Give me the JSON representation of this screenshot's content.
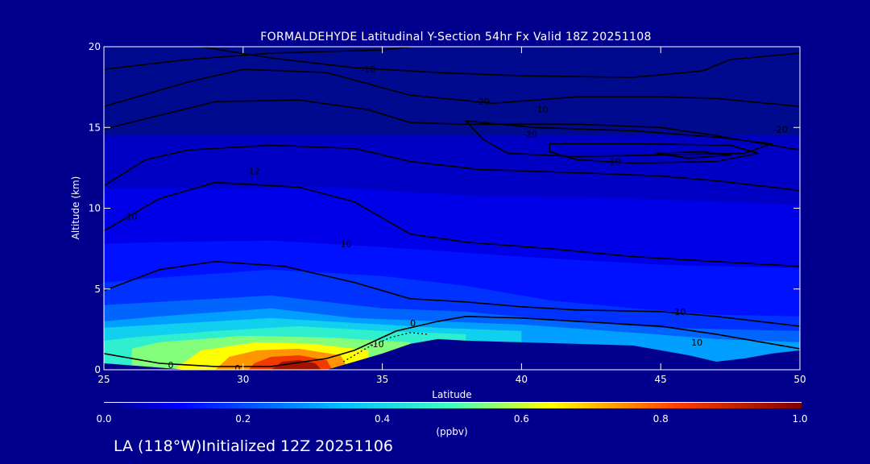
{
  "chart_data": {
    "type": "heatmap",
    "title": "FORMALDEHYDE Latitudinal Y-Section 54hr  Fx Valid 18Z 20251108",
    "xlabel": "Latitude",
    "ylabel": "Altitude (km)",
    "xlim": [
      25,
      50
    ],
    "ylim": [
      0,
      20
    ],
    "x_ticks": [
      25,
      30,
      35,
      40,
      45,
      50
    ],
    "y_ticks": [
      0,
      5,
      10,
      15,
      20
    ],
    "colorbar": {
      "label": "(ppbv)",
      "range": [
        0.0,
        1.0
      ],
      "ticks": [
        "0.0",
        "0.2",
        "0.4",
        "0.6",
        "0.8",
        "1.0"
      ]
    },
    "colors": {
      "background": "#00008c",
      "plot_background": "#000a8e",
      "terrain": "#00008c",
      "contour": "#000000"
    },
    "terrain_profile": [
      [
        25,
        0.4
      ],
      [
        28,
        0
      ],
      [
        30,
        0
      ],
      [
        31,
        0
      ],
      [
        33,
        0
      ],
      [
        34,
        0.5
      ],
      [
        35,
        1.0
      ],
      [
        36,
        1.6
      ],
      [
        37,
        1.9
      ],
      [
        38,
        1.8
      ],
      [
        40,
        1.7
      ],
      [
        42,
        1.6
      ],
      [
        44,
        1.5
      ],
      [
        45,
        1.2
      ],
      [
        46,
        0.9
      ],
      [
        47,
        0.5
      ],
      [
        48,
        0.7
      ],
      [
        49,
        1.0
      ],
      [
        50,
        1.2
      ]
    ],
    "concentration_fields": [
      {
        "value": 0.06,
        "polygon": [
          [
            25,
            0
          ],
          [
            50,
            0
          ],
          [
            50,
            14.5
          ],
          [
            25,
            14.5
          ]
        ]
      },
      {
        "value": 0.09,
        "polygon": [
          [
            25,
            0
          ],
          [
            50,
            0
          ],
          [
            50,
            10.2
          ],
          [
            44,
            10.6
          ],
          [
            38,
            10.8
          ],
          [
            33,
            11.3
          ],
          [
            25,
            11.2
          ]
        ]
      },
      {
        "value": 0.13,
        "polygon": [
          [
            25,
            0
          ],
          [
            50,
            0
          ],
          [
            50,
            6.3
          ],
          [
            45,
            6.5
          ],
          [
            40,
            7.0
          ],
          [
            35,
            7.6
          ],
          [
            31,
            8.0
          ],
          [
            27,
            7.9
          ],
          [
            25,
            7.8
          ]
        ]
      },
      {
        "value": 0.17,
        "polygon": [
          [
            25,
            0
          ],
          [
            50,
            0
          ],
          [
            50,
            3.3
          ],
          [
            47,
            3.4
          ],
          [
            44,
            3.8
          ],
          [
            41,
            4.3
          ],
          [
            38,
            5.2
          ],
          [
            35,
            5.8
          ],
          [
            31,
            6.2
          ],
          [
            27,
            5.7
          ],
          [
            25,
            5.4
          ]
        ]
      },
      {
        "value": 0.23,
        "polygon": [
          [
            25,
            0
          ],
          [
            50,
            0
          ],
          [
            50,
            2.4
          ],
          [
            45,
            2.6
          ],
          [
            41,
            3.1
          ],
          [
            38,
            3.6
          ],
          [
            35,
            3.8
          ],
          [
            31,
            4.6
          ],
          [
            27,
            4.2
          ],
          [
            25,
            4.0
          ]
        ]
      },
      {
        "value": 0.3,
        "polygon": [
          [
            25,
            0
          ],
          [
            50,
            0
          ],
          [
            50,
            1.7
          ],
          [
            47,
            1.9
          ],
          [
            44,
            2.3
          ],
          [
            40,
            2.8
          ],
          [
            37,
            3.0
          ],
          [
            34,
            3.2
          ],
          [
            31,
            3.8
          ],
          [
            27,
            3.3
          ],
          [
            25,
            3.0
          ]
        ]
      },
      {
        "value": 0.38,
        "polygon": [
          [
            25,
            0
          ],
          [
            40,
            0
          ],
          [
            40,
            2.4
          ],
          [
            37,
            2.6
          ],
          [
            34,
            2.9
          ],
          [
            31,
            3.2
          ],
          [
            28,
            2.9
          ],
          [
            25,
            2.6
          ]
        ]
      },
      {
        "value": 0.46,
        "polygon": [
          [
            25,
            0
          ],
          [
            38,
            0
          ],
          [
            38,
            2.2
          ],
          [
            35,
            2.4
          ],
          [
            32,
            2.7
          ],
          [
            29,
            2.4
          ],
          [
            26,
            2.0
          ],
          [
            25,
            1.8
          ]
        ]
      },
      {
        "value": 0.55,
        "polygon": [
          [
            26,
            0
          ],
          [
            36,
            0
          ],
          [
            36,
            1.7
          ],
          [
            33,
            2.0
          ],
          [
            30,
            2.1
          ],
          [
            27,
            1.7
          ],
          [
            26,
            1.3
          ]
        ]
      },
      {
        "value": 0.64,
        "polygon": [
          [
            27.5,
            0
          ],
          [
            34.5,
            0
          ],
          [
            34.5,
            1.2
          ],
          [
            32.5,
            1.6
          ],
          [
            30.5,
            1.7
          ],
          [
            28.5,
            1.2
          ]
        ]
      },
      {
        "value": 0.74,
        "polygon": [
          [
            29,
            0
          ],
          [
            33.8,
            0
          ],
          [
            33.5,
            0.9
          ],
          [
            32,
            1.3
          ],
          [
            30.5,
            1.2
          ],
          [
            29.5,
            0.8
          ]
        ]
      },
      {
        "value": 0.84,
        "polygon": [
          [
            30.2,
            0
          ],
          [
            33.2,
            0
          ],
          [
            33,
            0.6
          ],
          [
            32,
            0.9
          ],
          [
            31,
            0.8
          ],
          [
            30.4,
            0.4
          ]
        ]
      },
      {
        "value": 0.95,
        "polygon": [
          [
            31,
            0
          ],
          [
            32.8,
            0
          ],
          [
            32.6,
            0.4
          ],
          [
            32,
            0.6
          ],
          [
            31.4,
            0.5
          ]
        ]
      }
    ],
    "contour_lines": [
      {
        "points": [
          [
            25,
            18.6
          ],
          [
            28,
            19.2
          ],
          [
            31,
            19.6
          ],
          [
            33,
            19.7
          ],
          [
            35,
            19.8
          ],
          [
            36,
            20
          ]
        ]
      },
      {
        "points": [
          [
            28.5,
            20
          ],
          [
            31,
            19.3
          ],
          [
            34,
            18.7
          ],
          [
            37,
            18.4
          ],
          [
            40,
            18.2
          ],
          [
            44,
            18.1
          ],
          [
            46.5,
            18.5
          ],
          [
            47.5,
            19.2
          ],
          [
            50,
            19.6
          ]
        ],
        "label": "-10",
        "label_at": [
          34.5,
          18.6
        ]
      },
      {
        "points": [
          [
            25,
            16.3
          ],
          [
            28,
            17.8
          ],
          [
            30,
            18.6
          ],
          [
            33,
            18.4
          ],
          [
            36,
            17.0
          ],
          [
            39,
            16.5
          ],
          [
            42,
            16.9
          ],
          [
            45,
            16.9
          ],
          [
            47,
            16.8
          ],
          [
            50,
            16.3
          ]
        ],
        "label": "-20",
        "label_at": [
          38.6,
          16.6
        ]
      },
      {
        "points": [
          [
            25,
            14.9
          ],
          [
            29,
            16.6
          ],
          [
            32,
            16.7
          ],
          [
            34.5,
            16.1
          ],
          [
            36,
            15.3
          ],
          [
            38,
            15.2
          ],
          [
            42,
            15.2
          ],
          [
            45,
            15.0
          ],
          [
            47,
            14.5
          ],
          [
            50,
            13.6
          ]
        ],
        "label": "-20",
        "label_at": [
          49.3,
          14.9
        ]
      },
      {
        "points": [
          [
            38,
            15.4
          ],
          [
            40.5,
            15.0
          ],
          [
            44,
            14.8
          ],
          [
            47,
            14.4
          ],
          [
            49,
            14.0
          ],
          [
            48,
            13.4
          ],
          [
            45,
            13.3
          ],
          [
            42,
            13.2
          ],
          [
            39.5,
            13.4
          ],
          [
            38.6,
            14.3
          ],
          [
            38,
            15.4
          ]
        ],
        "label": "-20",
        "label_at": [
          40.3,
          14.6
        ]
      },
      {
        "points": [
          [
            41,
            14.0
          ],
          [
            44,
            14.0
          ],
          [
            47.5,
            13.9
          ],
          [
            48.5,
            13.4
          ],
          [
            47,
            12.9
          ],
          [
            44,
            12.8
          ],
          [
            42,
            13.0
          ],
          [
            41,
            13.5
          ],
          [
            41,
            14.0
          ]
        ],
        "label": "-10",
        "label_at": [
          43.3,
          12.9
        ]
      },
      {
        "points": [
          [
            44.8,
            13.4
          ],
          [
            46.5,
            13.5
          ],
          [
            47.5,
            13.3
          ],
          [
            46,
            13.1
          ],
          [
            44.8,
            13.4
          ]
        ]
      },
      {
        "points": [
          [
            25,
            11.4
          ],
          [
            26.5,
            13.0
          ],
          [
            28,
            13.6
          ],
          [
            31,
            13.9
          ],
          [
            34,
            13.7
          ],
          [
            36,
            12.9
          ],
          [
            38.5,
            12.4
          ],
          [
            42,
            12.2
          ],
          [
            45,
            12.0
          ],
          [
            47,
            11.7
          ],
          [
            50,
            11.1
          ]
        ],
        "label": "12",
        "label_at": [
          30.4,
          12.3
        ]
      },
      {
        "points": [
          [
            25,
            8.6
          ],
          [
            27,
            10.6
          ],
          [
            29,
            11.6
          ],
          [
            32,
            11.3
          ],
          [
            34,
            10.4
          ],
          [
            36,
            8.4
          ],
          [
            38,
            7.9
          ],
          [
            41,
            7.5
          ],
          [
            44,
            7.0
          ],
          [
            47,
            6.7
          ],
          [
            50,
            6.4
          ]
        ],
        "label": "10",
        "label_at": [
          26,
          9.5
        ]
      },
      {
        "points": [
          [
            25,
            4.9
          ],
          [
            27,
            6.2
          ],
          [
            29,
            6.7
          ],
          [
            31.5,
            6.4
          ],
          [
            34,
            5.4
          ],
          [
            36,
            4.4
          ],
          [
            38,
            4.2
          ],
          [
            40,
            3.9
          ],
          [
            42,
            3.7
          ],
          [
            45,
            3.6
          ],
          [
            47,
            3.3
          ],
          [
            50,
            2.7
          ]
        ],
        "label": "10",
        "label_at": [
          45.7,
          3.6
        ]
      },
      {
        "points": [
          [
            25,
            1.0
          ],
          [
            27,
            0.4
          ],
          [
            29,
            0.2
          ],
          [
            31,
            0.2
          ],
          [
            33,
            0.7
          ],
          [
            34,
            1.2
          ],
          [
            35.5,
            2.4
          ],
          [
            37,
            3.0
          ],
          [
            38,
            3.3
          ],
          [
            40,
            3.2
          ],
          [
            42,
            3.0
          ],
          [
            45,
            2.7
          ],
          [
            47,
            2.2
          ],
          [
            49,
            1.6
          ],
          [
            50,
            1.3
          ]
        ],
        "label": "0",
        "label_at": [
          27.4,
          0.3
        ]
      },
      {
        "points": [
          [
            33.6,
            0.5
          ],
          [
            34.5,
            1.4
          ],
          [
            35.3,
            2.0
          ],
          [
            36,
            2.3
          ],
          [
            36.6,
            2.2
          ]
        ],
        "dashed": true,
        "label": "-10",
        "label_at": [
          34.8,
          1.6
        ]
      }
    ],
    "labels": [
      {
        "text": "0",
        "at": [
          29.8,
          0.1
        ]
      },
      {
        "text": "0",
        "at": [
          36.1,
          2.9
        ]
      },
      {
        "text": "10",
        "at": [
          46.3,
          1.7
        ]
      },
      {
        "text": "-10",
        "at": [
          40.7,
          16.1
        ]
      },
      {
        "text": "10",
        "at": [
          33.7,
          7.8
        ]
      }
    ]
  },
  "footer": {
    "text": "LA (118°W)Initialized 12Z 20251106"
  }
}
